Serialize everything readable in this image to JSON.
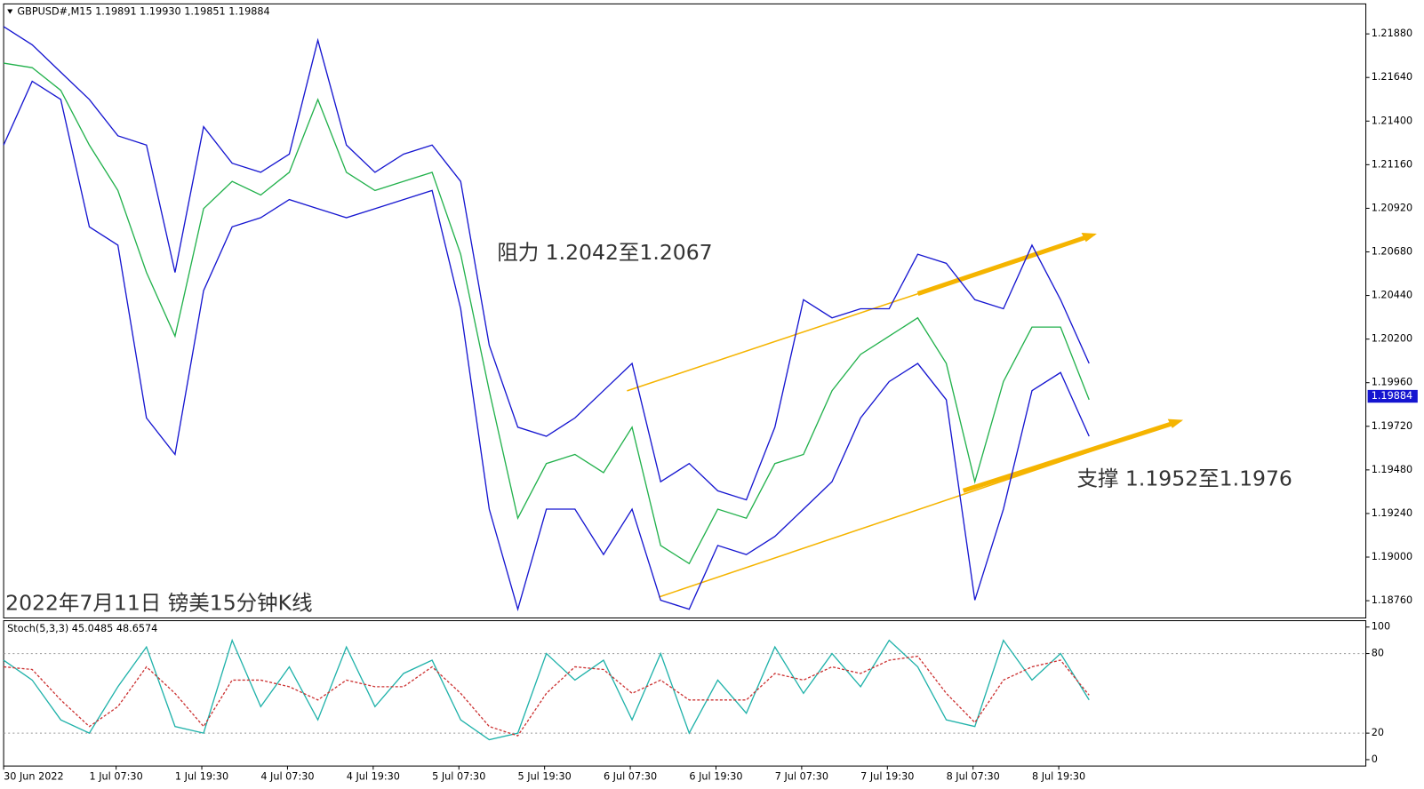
{
  "chart_data": [
    {
      "type": "line",
      "header": "GBPUSD#,M15  1.19891 1.19930 1.19851 1.19884",
      "annotations": [
        "阻力 1.2042至1.2067",
        "支撑 1.1952至1.1976",
        "2022年7月11日 镑美15分钟K线"
      ],
      "price_tag": "1.19884",
      "x": [
        0,
        16,
        32,
        48,
        64,
        80,
        96,
        112,
        128,
        144,
        160,
        176,
        192,
        208,
        224,
        240,
        256,
        272,
        288,
        304,
        320,
        336,
        352,
        368,
        384,
        400,
        416,
        432,
        448,
        464,
        480,
        496,
        512,
        528,
        544,
        560,
        576,
        592,
        608
      ],
      "xlim": [
        0,
        763
      ],
      "ylim": [
        1.18665,
        1.22045
      ],
      "yticks": [
        {
          "value": 1.2188,
          "label": "1.21880"
        },
        {
          "value": 1.2164,
          "label": "1.21640"
        },
        {
          "value": 1.214,
          "label": "1.21400"
        },
        {
          "value": 1.2116,
          "label": "1.21160"
        },
        {
          "value": 1.2092,
          "label": "1.20920"
        },
        {
          "value": 1.2068,
          "label": "1.20680"
        },
        {
          "value": 1.2044,
          "label": "1.20440"
        },
        {
          "value": 1.202,
          "label": "1.20200"
        },
        {
          "value": 1.1996,
          "label": "1.19960"
        },
        {
          "value": 1.1972,
          "label": "1.19720"
        },
        {
          "value": 1.1948,
          "label": "1.19480"
        },
        {
          "value": 1.1924,
          "label": "1.19240"
        },
        {
          "value": 1.19,
          "label": "1.19000"
        },
        {
          "value": 1.1876,
          "label": "1.18760"
        }
      ],
      "series": [
        {
          "color": "#22b14c",
          "values": [
            1.21719,
            1.21694,
            1.21569,
            1.21268,
            1.21018,
            1.20567,
            1.20216,
            1.20918,
            1.21068,
            1.20993,
            1.21118,
            1.21519,
            1.21118,
            1.21018,
            1.21068,
            1.21118,
            1.20667,
            1.19916,
            1.19214,
            1.19515,
            1.19565,
            1.19465,
            1.19715,
            1.19064,
            1.18964,
            1.19264,
            1.19214,
            1.19515,
            1.19565,
            1.19916,
            1.20116,
            1.20216,
            1.20317,
            1.20066,
            1.19415,
            1.19966,
            1.20266,
            1.20266,
            1.19866
          ]
        },
        {
          "color": "#1515d0",
          "values": [
            1.2192,
            1.2182,
            1.21669,
            1.21519,
            1.21319,
            1.21268,
            1.20567,
            1.21369,
            1.21168,
            1.21118,
            1.21218,
            1.21845,
            1.21268,
            1.21118,
            1.21218,
            1.21268,
            1.21068,
            1.20166,
            1.19715,
            1.19665,
            1.19766,
            1.19916,
            1.20066,
            1.19415,
            1.19515,
            1.19365,
            1.19315,
            1.19715,
            1.20417,
            1.20317,
            1.20367,
            1.20367,
            1.20667,
            1.20617,
            1.20417,
            1.20367,
            1.20717,
            1.20417,
            1.20066
          ]
        },
        {
          "color": "#1515d0",
          "values": [
            1.21268,
            1.21619,
            1.21519,
            1.20818,
            1.20717,
            1.19766,
            1.19565,
            1.20467,
            1.20818,
            1.20868,
            1.20968,
            1.20918,
            1.20868,
            1.20918,
            1.20968,
            1.21018,
            1.20367,
            1.19264,
            1.18713,
            1.19264,
            1.19264,
            1.19014,
            1.19264,
            1.18763,
            1.18713,
            1.19064,
            1.19014,
            1.19114,
            1.19264,
            1.19415,
            1.19766,
            1.19966,
            1.20066,
            1.19866,
            1.18763,
            1.19264,
            1.19916,
            1.20016,
            1.19665
          ]
        }
      ]
    },
    {
      "type": "line",
      "title": "Stoch(5,3,3) 45.0485 48.6574",
      "x": [
        0,
        16,
        32,
        48,
        64,
        80,
        96,
        112,
        128,
        144,
        160,
        176,
        192,
        208,
        224,
        240,
        256,
        272,
        288,
        304,
        320,
        336,
        352,
        368,
        384,
        400,
        416,
        432,
        448,
        464,
        480,
        496,
        512,
        528,
        544,
        560,
        576,
        592,
        608
      ],
      "xlim": [
        0,
        763
      ],
      "xticks": [
        {
          "value": 0,
          "label": "30 Jun 2022"
        },
        {
          "value": 63,
          "label": "1 Jul 07:30"
        },
        {
          "value": 111,
          "label": "1 Jul 19:30"
        },
        {
          "value": 159,
          "label": "4 Jul 07:30"
        },
        {
          "value": 207,
          "label": "4 Jul 19:30"
        },
        {
          "value": 255,
          "label": "5 Jul 07:30"
        },
        {
          "value": 303,
          "label": "5 Jul 19:30"
        },
        {
          "value": 351,
          "label": "6 Jul 07:30"
        },
        {
          "value": 399,
          "label": "6 Jul 19:30"
        },
        {
          "value": 447,
          "label": "7 Jul 07:30"
        },
        {
          "value": 495,
          "label": "7 Jul 19:30"
        },
        {
          "value": 543,
          "label": "8 Jul 07:30"
        },
        {
          "value": 591,
          "label": "8 Jul 19:30"
        }
      ],
      "ylim": [
        -4.8,
        104.8
      ],
      "yticks": [
        0,
        20,
        80,
        100
      ],
      "levels": [
        20,
        80
      ],
      "series": [
        {
          "color": "#20b2aa",
          "values": [
            75,
            60,
            30,
            20,
            55,
            85,
            25,
            20,
            90,
            40,
            70,
            30,
            85,
            40,
            65,
            75,
            30,
            15,
            20,
            80,
            60,
            75,
            30,
            80,
            20,
            60,
            35,
            85,
            50,
            80,
            55,
            90,
            70,
            30,
            25,
            90,
            60,
            80,
            45.0485
          ]
        },
        {
          "color": "#cc3333",
          "dashed": true,
          "values": [
            70,
            68,
            45,
            25,
            40,
            70,
            50,
            25,
            60,
            60,
            55,
            45,
            60,
            55,
            55,
            70,
            50,
            25,
            18,
            50,
            70,
            68,
            50,
            60,
            45,
            45,
            45,
            65,
            60,
            70,
            65,
            75,
            78,
            50,
            28,
            60,
            70,
            75,
            48.6574
          ]
        }
      ]
    }
  ]
}
